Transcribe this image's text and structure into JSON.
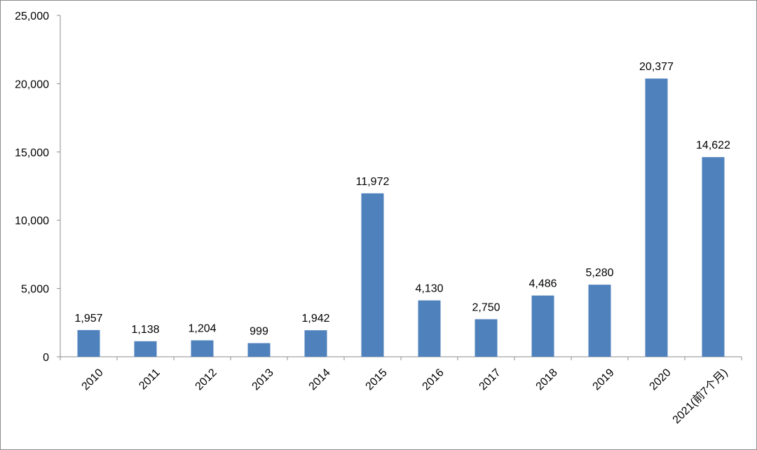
{
  "chart_data": {
    "type": "bar",
    "categories": [
      "2010",
      "2011",
      "2012",
      "2013",
      "2014",
      "2015",
      "2016",
      "2017",
      "2018",
      "2019",
      "2020",
      "2021(前7个月)"
    ],
    "values": [
      1957,
      1138,
      1204,
      999,
      1942,
      11972,
      4130,
      2750,
      4486,
      5280,
      20377,
      14622
    ],
    "data_labels": [
      "1,957",
      "1,138",
      "1,204",
      "999",
      "1,942",
      "11,972",
      "4,130",
      "2,750",
      "4,486",
      "5,280",
      "20,377",
      "14,622"
    ],
    "yticks": [
      0,
      5000,
      10000,
      15000,
      20000,
      25000
    ],
    "ytick_labels": [
      "0",
      "5,000",
      "10,000",
      "15,000",
      "20,000",
      "25,000"
    ],
    "ylim": [
      0,
      25000
    ],
    "title": "",
    "xlabel": "",
    "ylabel": "",
    "grid": false,
    "legend": "none",
    "bar_color": "#4F81BD",
    "axis_color": "#8C8C8C"
  }
}
